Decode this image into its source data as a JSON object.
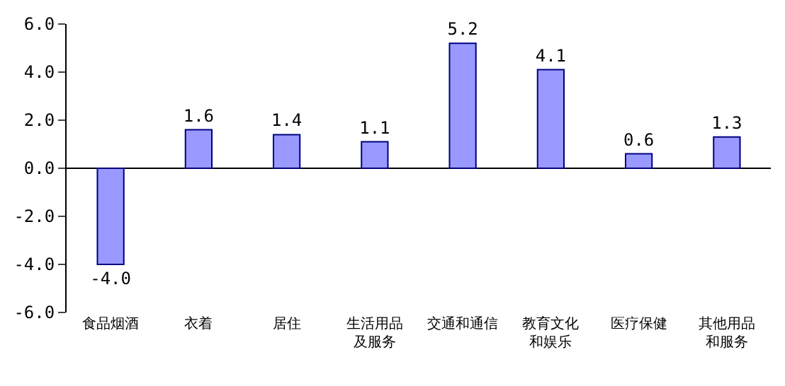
{
  "chart_data": {
    "type": "bar",
    "categories": [
      "食品烟酒",
      "衣着",
      "居住",
      "生活用品及服务",
      "交通和通信",
      "教育文化和娱乐",
      "医疗保健",
      "其他用品和服务"
    ],
    "values": [
      -4.0,
      1.6,
      1.4,
      1.1,
      5.2,
      4.1,
      0.6,
      1.3
    ],
    "value_labels": [
      "-4.0",
      "1.6",
      "1.4",
      "1.1",
      "5.2",
      "4.1",
      "0.6",
      "1.3"
    ],
    "color": "#9999ff",
    "ylim": [
      -6,
      6
    ],
    "yticks": [
      {
        "value": 6,
        "label": "6.0"
      },
      {
        "value": 4,
        "label": "4.0"
      },
      {
        "value": 2,
        "label": "2.0"
      },
      {
        "value": 0,
        "label": "0.0"
      },
      {
        "value": -2,
        "label": "-2.0"
      },
      {
        "value": -4,
        "label": "-4.0"
      },
      {
        "value": -6,
        "label": "-6.0"
      }
    ]
  }
}
